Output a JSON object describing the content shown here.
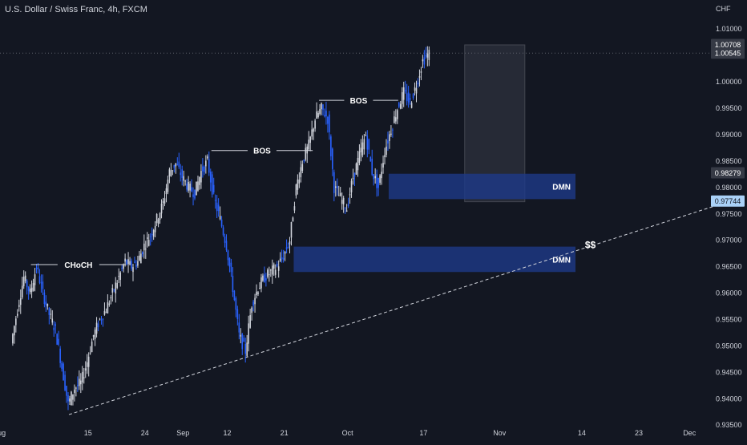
{
  "header": {
    "symbol_title": "U.S. Dollar / Swiss Franc, 4h, FXCM"
  },
  "colors": {
    "background": "#131722",
    "text": "#d1d4dc",
    "candle_up": "#d1d4dc",
    "candle_down": "#2962ff",
    "zone": "#1e3a8a",
    "trendline": "#d1d4dc",
    "price_tag": "#363a45",
    "current_tag": "#aad1f7"
  },
  "chart_data": {
    "type": "candlestick",
    "title": "U.S. Dollar / Swiss Franc, 4h, FXCM",
    "currency_label": "CHF",
    "ylim": [
      0.932,
      1.0155
    ],
    "y_ticks": [
      "1.01000",
      "1.00500",
      "1.00000",
      "0.99500",
      "0.99000",
      "0.98500",
      "0.98000",
      "0.97500",
      "0.97000",
      "0.96500",
      "0.96000",
      "0.95500",
      "0.95000",
      "0.94500",
      "0.94000",
      "0.93500"
    ],
    "x_ticks": [
      {
        "label": "Aug",
        "x": -1
      },
      {
        "label": "15",
        "x": 13
      },
      {
        "label": "24",
        "x": 22
      },
      {
        "label": "Sep",
        "x": 28
      },
      {
        "label": "12",
        "x": 35
      },
      {
        "label": "21",
        "x": 44
      },
      {
        "label": "Oct",
        "x": 54
      },
      {
        "label": "17",
        "x": 66
      },
      {
        "label": "Nov",
        "x": 78
      },
      {
        "label": "14",
        "x": 91
      },
      {
        "label": "23",
        "x": 100
      },
      {
        "label": "Dec",
        "x": 108
      }
    ],
    "price_series": [
      {
        "x": 1,
        "y": 0.9505
      },
      {
        "x": 2,
        "y": 0.957
      },
      {
        "x": 3,
        "y": 0.963
      },
      {
        "x": 4,
        "y": 0.96
      },
      {
        "x": 5,
        "y": 0.965
      },
      {
        "x": 6,
        "y": 0.96
      },
      {
        "x": 7,
        "y": 0.956
      },
      {
        "x": 8,
        "y": 0.953
      },
      {
        "x": 9,
        "y": 0.946
      },
      {
        "x": 10,
        "y": 0.939
      },
      {
        "x": 11,
        "y": 0.942
      },
      {
        "x": 12,
        "y": 0.943
      },
      {
        "x": 13,
        "y": 0.947
      },
      {
        "x": 14,
        "y": 0.952
      },
      {
        "x": 15,
        "y": 0.955
      },
      {
        "x": 16,
        "y": 0.957
      },
      {
        "x": 17,
        "y": 0.96
      },
      {
        "x": 18,
        "y": 0.963
      },
      {
        "x": 19,
        "y": 0.966
      },
      {
        "x": 20,
        "y": 0.965
      },
      {
        "x": 21,
        "y": 0.966
      },
      {
        "x": 22,
        "y": 0.969
      },
      {
        "x": 23,
        "y": 0.971
      },
      {
        "x": 24,
        "y": 0.974
      },
      {
        "x": 25,
        "y": 0.977
      },
      {
        "x": 26,
        "y": 0.983
      },
      {
        "x": 27,
        "y": 0.9845
      },
      {
        "x": 28,
        "y": 0.982
      },
      {
        "x": 29,
        "y": 0.98
      },
      {
        "x": 30,
        "y": 0.979
      },
      {
        "x": 31,
        "y": 0.983
      },
      {
        "x": 32,
        "y": 0.985
      },
      {
        "x": 33,
        "y": 0.978
      },
      {
        "x": 34,
        "y": 0.974
      },
      {
        "x": 35,
        "y": 0.969
      },
      {
        "x": 36,
        "y": 0.961
      },
      {
        "x": 37,
        "y": 0.952
      },
      {
        "x": 38,
        "y": 0.949
      },
      {
        "x": 39,
        "y": 0.958
      },
      {
        "x": 40,
        "y": 0.961
      },
      {
        "x": 41,
        "y": 0.963
      },
      {
        "x": 42,
        "y": 0.964
      },
      {
        "x": 43,
        "y": 0.965
      },
      {
        "x": 44,
        "y": 0.967
      },
      {
        "x": 45,
        "y": 0.97
      },
      {
        "x": 46,
        "y": 0.98
      },
      {
        "x": 47,
        "y": 0.985
      },
      {
        "x": 48,
        "y": 0.988
      },
      {
        "x": 49,
        "y": 0.993
      },
      {
        "x": 50,
        "y": 0.995
      },
      {
        "x": 51,
        "y": 0.993
      },
      {
        "x": 52,
        "y": 0.98
      },
      {
        "x": 53,
        "y": 0.978
      },
      {
        "x": 54,
        "y": 0.976
      },
      {
        "x": 55,
        "y": 0.982
      },
      {
        "x": 56,
        "y": 0.986
      },
      {
        "x": 57,
        "y": 0.99
      },
      {
        "x": 58,
        "y": 0.983
      },
      {
        "x": 59,
        "y": 0.98
      },
      {
        "x": 60,
        "y": 0.987
      },
      {
        "x": 61,
        "y": 0.991
      },
      {
        "x": 62,
        "y": 0.995
      },
      {
        "x": 63,
        "y": 0.998
      },
      {
        "x": 64,
        "y": 0.996
      },
      {
        "x": 65,
        "y": 0.9995
      },
      {
        "x": 66,
        "y": 1.004
      },
      {
        "x": 67,
        "y": 1.0054
      }
    ],
    "zones": [
      {
        "label": "DMN",
        "x_start": 60.5,
        "x_end": 90,
        "y_low": 0.9778,
        "y_high": 0.9826
      },
      {
        "label": "DMN",
        "x_start": 45.5,
        "x_end": 90,
        "y_low": 0.964,
        "y_high": 0.9688
      }
    ],
    "projection_box": {
      "x_start": 72.5,
      "x_end": 82,
      "y_low": 0.9773,
      "y_high": 1.007
    },
    "structure_lines": [
      {
        "label": "CHoCH",
        "x_start": 4,
        "x_end": 19,
        "y": 0.9654
      },
      {
        "label": "BOS",
        "x_start": 32.5,
        "x_end": 48.5,
        "y": 0.987
      },
      {
        "label": "BOS",
        "x_start": 49.5,
        "x_end": 62,
        "y": 0.9965
      }
    ],
    "trendline": {
      "x1": 10,
      "y1": 0.937,
      "x2": 112,
      "y2": 0.9765,
      "style": "dashed"
    },
    "trendline_label": "$$",
    "price_labels": [
      {
        "text": "1.00708",
        "value": 1.00708,
        "style": "box"
      },
      {
        "text": "1.00545",
        "value": 1.00545,
        "style": "box"
      },
      {
        "text": "0.98279",
        "value": 0.98279,
        "style": "box"
      },
      {
        "text": "0.97744",
        "value": 0.97744,
        "style": "current"
      }
    ],
    "current_price_line": 1.00545,
    "grid": false
  }
}
